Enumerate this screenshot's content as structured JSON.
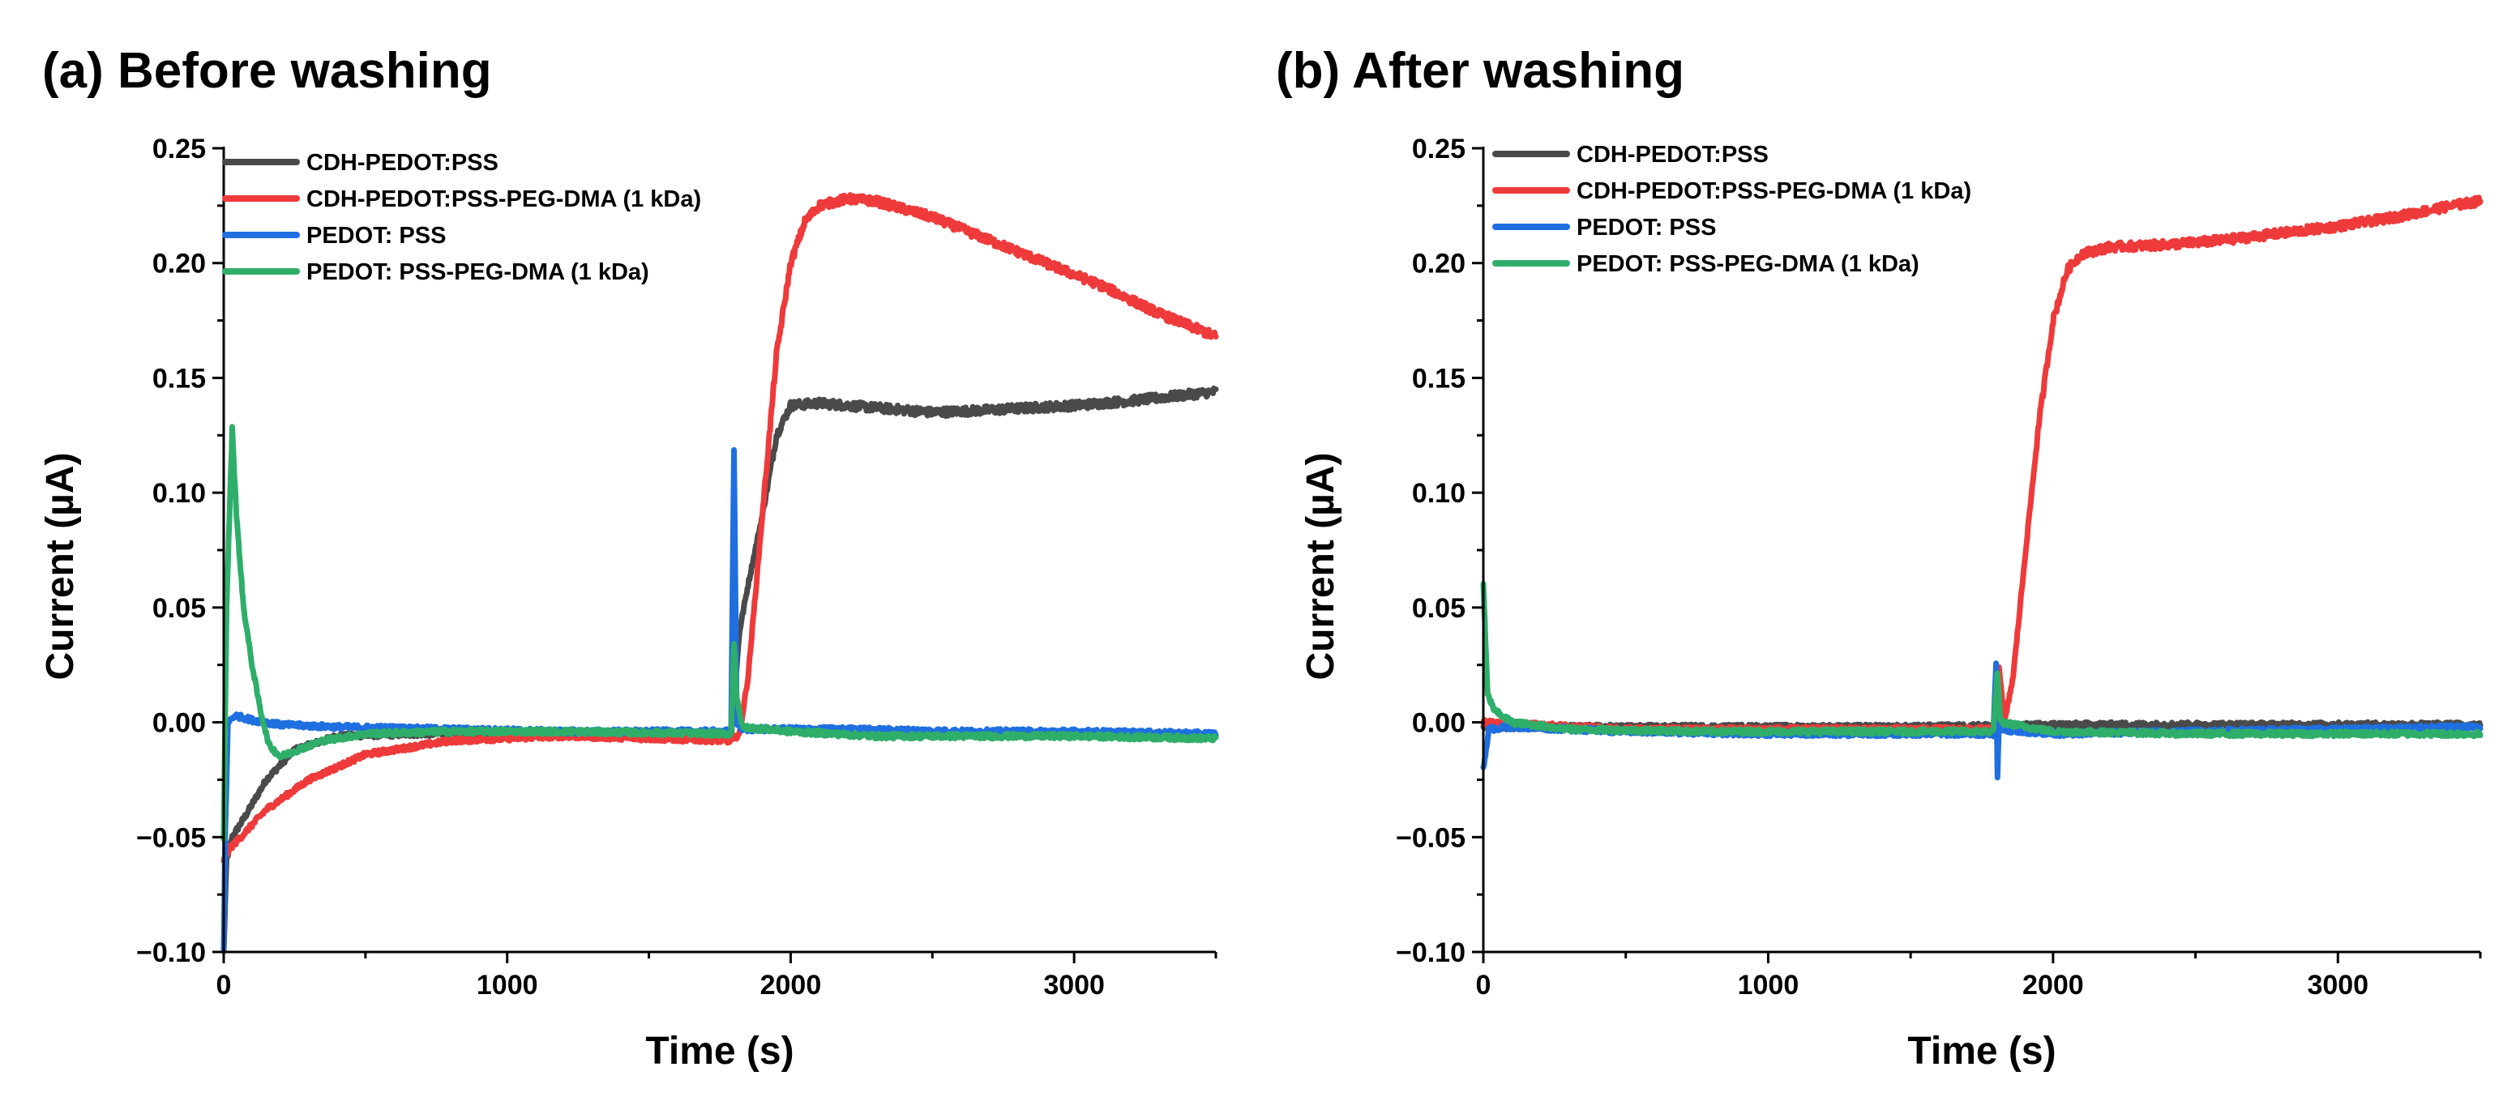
{
  "chart_data": [
    {
      "type": "line",
      "title": "(a) Before washing",
      "xlabel": "Time (s)",
      "ylabel": "Current (µA)",
      "xlim": [
        0,
        3500
      ],
      "ylim": [
        -0.1,
        0.25
      ],
      "xticks": [
        0,
        1000,
        2000,
        3000
      ],
      "xtick_labels": [
        "0",
        "1000",
        "2000",
        "3000"
      ],
      "yticks": [
        -0.1,
        -0.05,
        0.0,
        0.05,
        0.1,
        0.15,
        0.2,
        0.25
      ],
      "ytick_labels": [
        "−0.10",
        "−0.05",
        "0.00",
        "0.05",
        "0.10",
        "0.15",
        "0.20",
        "0.25"
      ],
      "legend_position": "top-left",
      "series": [
        {
          "name": "CDH-PEDOT:PSS",
          "color": "#4a4a4a",
          "points": [
            [
              0,
              -0.1
            ],
            [
              10,
              -0.06
            ],
            [
              30,
              -0.05
            ],
            [
              80,
              -0.04
            ],
            [
              150,
              -0.025
            ],
            [
              250,
              -0.012
            ],
            [
              400,
              -0.006
            ],
            [
              700,
              -0.005
            ],
            [
              1200,
              -0.005
            ],
            [
              1790,
              -0.005
            ],
            [
              1800,
              0.01
            ],
            [
              1820,
              0.04
            ],
            [
              1850,
              0.06
            ],
            [
              1900,
              0.09
            ],
            [
              1950,
              0.125
            ],
            [
              2000,
              0.138
            ],
            [
              2100,
              0.139
            ],
            [
              2300,
              0.137
            ],
            [
              2500,
              0.135
            ],
            [
              2700,
              0.136
            ],
            [
              3000,
              0.138
            ],
            [
              3200,
              0.14
            ],
            [
              3500,
              0.144
            ]
          ]
        },
        {
          "name": "CDH-PEDOT:PSS-PEG-DMA (1 kDa)",
          "color": "#ee3a3a",
          "points": [
            [
              0,
              -0.06
            ],
            [
              20,
              -0.055
            ],
            [
              60,
              -0.05
            ],
            [
              150,
              -0.038
            ],
            [
              300,
              -0.025
            ],
            [
              500,
              -0.014
            ],
            [
              800,
              -0.008
            ],
            [
              1200,
              -0.006
            ],
            [
              1790,
              -0.008
            ],
            [
              1820,
              -0.005
            ],
            [
              1850,
              0.02
            ],
            [
              1900,
              0.09
            ],
            [
              1950,
              0.16
            ],
            [
              2000,
              0.2
            ],
            [
              2050,
              0.218
            ],
            [
              2100,
              0.225
            ],
            [
              2200,
              0.228
            ],
            [
              2300,
              0.227
            ],
            [
              2500,
              0.22
            ],
            [
              2700,
              0.21
            ],
            [
              2900,
              0.2
            ],
            [
              3100,
              0.19
            ],
            [
              3300,
              0.178
            ],
            [
              3500,
              0.168
            ]
          ]
        },
        {
          "name": "PEDOT: PSS",
          "color": "#1f6fe0",
          "points": [
            [
              0,
              -0.1
            ],
            [
              5,
              -0.05
            ],
            [
              15,
              0.0
            ],
            [
              40,
              0.003
            ],
            [
              100,
              0.001
            ],
            [
              200,
              -0.001
            ],
            [
              400,
              -0.002
            ],
            [
              800,
              -0.003
            ],
            [
              1200,
              -0.004
            ],
            [
              1790,
              -0.004
            ],
            [
              1800,
              0.12
            ],
            [
              1810,
              0.0
            ],
            [
              1830,
              -0.003
            ],
            [
              2200,
              -0.003
            ],
            [
              2600,
              -0.004
            ],
            [
              3000,
              -0.004
            ],
            [
              3500,
              -0.005
            ]
          ]
        },
        {
          "name": "PEDOT: PSS-PEG-DMA (1 kDa)",
          "color": "#2fae6a",
          "points": [
            [
              0,
              -0.05
            ],
            [
              10,
              0.05
            ],
            [
              30,
              0.128
            ],
            [
              45,
              0.09
            ],
            [
              70,
              0.05
            ],
            [
              100,
              0.025
            ],
            [
              130,
              0.005
            ],
            [
              160,
              -0.01
            ],
            [
              200,
              -0.015
            ],
            [
              260,
              -0.012
            ],
            [
              350,
              -0.008
            ],
            [
              500,
              -0.005
            ],
            [
              800,
              -0.004
            ],
            [
              1200,
              -0.004
            ],
            [
              1790,
              -0.005
            ],
            [
              1800,
              0.035
            ],
            [
              1810,
              0.01
            ],
            [
              1830,
              -0.002
            ],
            [
              2000,
              -0.004
            ],
            [
              2300,
              -0.006
            ],
            [
              2600,
              -0.006
            ],
            [
              3000,
              -0.006
            ],
            [
              3500,
              -0.007
            ]
          ]
        }
      ]
    },
    {
      "type": "line",
      "title": "(b) After washing",
      "xlabel": "Time (s)",
      "ylabel": "Current (µA)",
      "xlim": [
        0,
        3500
      ],
      "ylim": [
        -0.1,
        0.25
      ],
      "xticks": [
        0,
        1000,
        2000,
        3000
      ],
      "xtick_labels": [
        "0",
        "1000",
        "2000",
        "3000"
      ],
      "yticks": [
        -0.1,
        -0.05,
        0.0,
        0.05,
        0.1,
        0.15,
        0.2,
        0.25
      ],
      "ytick_labels": [
        "−0.10",
        "−0.05",
        "0.00",
        "0.05",
        "0.10",
        "0.15",
        "0.20",
        "0.25"
      ],
      "legend_position": "top-left",
      "series": [
        {
          "name": "CDH-PEDOT:PSS",
          "color": "#4a4a4a",
          "points": [
            [
              0,
              -0.002
            ],
            [
              200,
              -0.002
            ],
            [
              800,
              -0.002
            ],
            [
              1500,
              -0.002
            ],
            [
              2000,
              -0.001
            ],
            [
              3000,
              -0.001
            ],
            [
              3500,
              -0.001
            ]
          ]
        },
        {
          "name": "CDH-PEDOT:PSS-PEG-DMA (1 kDa)",
          "color": "#ee3a3a",
          "points": [
            [
              0,
              0.0
            ],
            [
              500,
              -0.003
            ],
            [
              1000,
              -0.003
            ],
            [
              1790,
              -0.003
            ],
            [
              1810,
              0.025
            ],
            [
              1830,
              0.0
            ],
            [
              1860,
              0.02
            ],
            [
              1900,
              0.07
            ],
            [
              1950,
              0.13
            ],
            [
              2000,
              0.175
            ],
            [
              2050,
              0.197
            ],
            [
              2100,
              0.204
            ],
            [
              2200,
              0.207
            ],
            [
              2400,
              0.208
            ],
            [
              2600,
              0.21
            ],
            [
              2800,
              0.213
            ],
            [
              3000,
              0.216
            ],
            [
              3200,
              0.22
            ],
            [
              3400,
              0.225
            ],
            [
              3500,
              0.227
            ]
          ]
        },
        {
          "name": "PEDOT: PSS",
          "color": "#1f6fe0",
          "points": [
            [
              0,
              -0.02
            ],
            [
              20,
              -0.003
            ],
            [
              100,
              -0.002
            ],
            [
              500,
              -0.004
            ],
            [
              1000,
              -0.005
            ],
            [
              1500,
              -0.005
            ],
            [
              1790,
              -0.005
            ],
            [
              1800,
              0.025
            ],
            [
              1805,
              -0.023
            ],
            [
              1810,
              -0.003
            ],
            [
              2000,
              -0.005
            ],
            [
              2500,
              -0.004
            ],
            [
              3000,
              -0.003
            ],
            [
              3500,
              -0.002
            ]
          ]
        },
        {
          "name": "PEDOT: PSS-PEG-DMA (1 kDa)",
          "color": "#2fae6a",
          "points": [
            [
              0,
              0.06
            ],
            [
              15,
              0.012
            ],
            [
              40,
              0.005
            ],
            [
              100,
              0.0
            ],
            [
              300,
              -0.003
            ],
            [
              800,
              -0.004
            ],
            [
              1500,
              -0.004
            ],
            [
              1790,
              -0.004
            ],
            [
              1805,
              0.022
            ],
            [
              1815,
              0.0
            ],
            [
              2000,
              -0.004
            ],
            [
              2500,
              -0.005
            ],
            [
              3000,
              -0.005
            ],
            [
              3500,
              -0.005
            ]
          ]
        }
      ]
    }
  ]
}
